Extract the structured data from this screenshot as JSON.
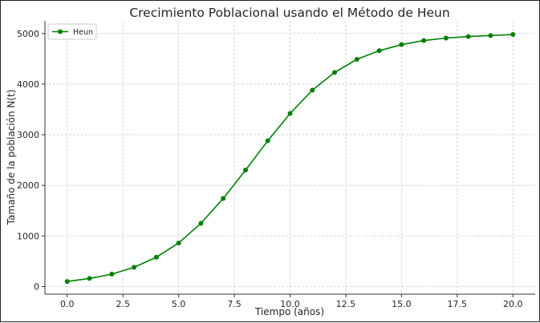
{
  "chart_data": {
    "type": "line",
    "title": "Crecimiento Poblacional usando el Método de Heun",
    "xlabel": "Tiempo (años)",
    "ylabel": "Tamaño de la población N(t)",
    "xlim": [
      -1,
      21
    ],
    "ylim": [
      -150,
      5250
    ],
    "xticks": [
      "0.0",
      "2.5",
      "5.0",
      "7.5",
      "10.0",
      "12.5",
      "15.0",
      "17.5",
      "20.0"
    ],
    "yticks": [
      "0",
      "1000",
      "2000",
      "3000",
      "4000",
      "5000"
    ],
    "grid": true,
    "legend_position": "top-left",
    "series": [
      {
        "name": "Heun",
        "color": "#008000",
        "marker": "circle",
        "x": [
          0,
          1,
          2,
          3,
          4,
          5,
          6,
          7,
          8,
          9,
          10,
          11,
          12,
          13,
          14,
          15,
          16,
          17,
          18,
          19,
          20
        ],
        "y": [
          100,
          160,
          245,
          380,
          580,
          860,
          1250,
          1740,
          2300,
          2880,
          3420,
          3880,
          4230,
          4490,
          4660,
          4780,
          4860,
          4910,
          4940,
          4960,
          4980
        ]
      }
    ]
  }
}
